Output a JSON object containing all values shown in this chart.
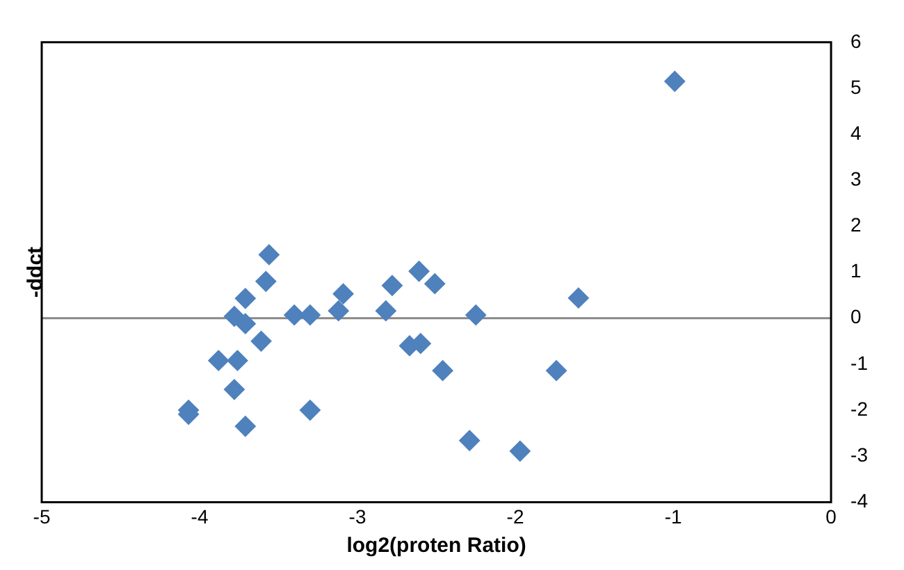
{
  "chart_data": {
    "type": "scatter",
    "xlabel": "log2(proten Ratio)",
    "ylabel": "-ddct",
    "series": [
      {
        "color": "#4f81bd",
        "x": [
          -0.99,
          -3.56,
          -3.58,
          -3.71,
          -3.78,
          -3.71,
          -3.61,
          -3.88,
          -3.76,
          -3.78,
          -4.07,
          -4.07,
          -3.71,
          -3.4,
          -3.3,
          -3.3,
          -3.09,
          -3.12,
          -2.82,
          -2.78,
          -2.61,
          -2.51,
          -2.67,
          -2.6,
          -2.46,
          -2.25,
          -2.29,
          -1.97,
          -1.74,
          -1.6
        ],
        "values": [
          5.15,
          1.38,
          0.8,
          0.43,
          0.04,
          -0.12,
          -0.5,
          -0.92,
          -0.92,
          -1.55,
          -2.0,
          -2.09,
          -2.35,
          0.07,
          0.07,
          -2.0,
          0.53,
          0.16,
          0.16,
          0.71,
          1.02,
          0.75,
          -0.6,
          -0.55,
          -1.14,
          0.07,
          -2.66,
          -2.89,
          -1.14,
          0.44
        ]
      }
    ],
    "xlim": [
      -5,
      0
    ],
    "xticks": [
      -5,
      -4,
      -3,
      -2,
      -1,
      0
    ],
    "ylim": [
      -4,
      6
    ],
    "yticks": [
      -4,
      -3,
      -2,
      -1,
      0,
      1,
      2,
      3,
      4,
      5,
      6
    ],
    "ref_lines": [
      {
        "axis": "y",
        "value": 0,
        "color": "#888888"
      }
    ],
    "marker": "diamond",
    "grid": false,
    "legend": false
  }
}
